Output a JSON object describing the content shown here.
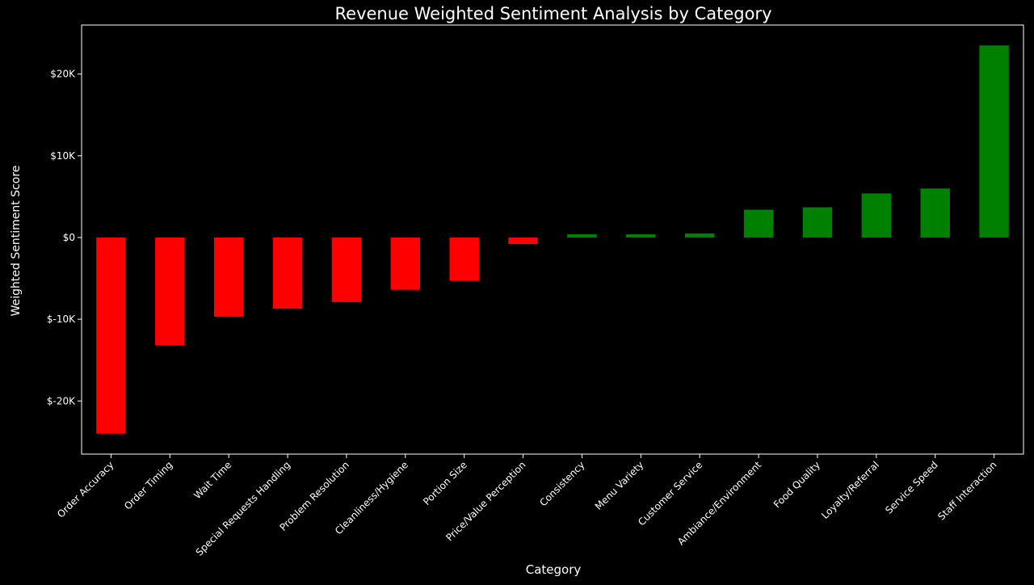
{
  "chart_data": {
    "type": "bar",
    "title": "Revenue Weighted Sentiment Analysis by Category",
    "xlabel": "Category",
    "ylabel": "Weighted Sentiment Score",
    "categories": [
      "Order Accuracy",
      "Order Timing",
      "Wait Time",
      "Special Requests Handling",
      "Problem Resolution",
      "Cleanliness/Hygiene",
      "Portion Size",
      "Price/Value Perception",
      "Consistency",
      "Menu Variety",
      "Customer Service",
      "Ambiance/Environment",
      "Food Quality",
      "Loyalty/Referral",
      "Service Speed",
      "Staff Interaction"
    ],
    "values": [
      -24000,
      -13200,
      -9700,
      -8700,
      -7900,
      -6400,
      -5300,
      -800,
      400,
      400,
      500,
      3400,
      3700,
      5400,
      6000,
      23500
    ],
    "ylim": [
      -26500,
      26000
    ],
    "yticks": [
      -20000,
      -10000,
      0,
      10000,
      20000
    ],
    "ytick_labels": [
      "$-20K",
      "$-10K",
      "$0",
      "$10K",
      "$20K"
    ],
    "positive_color": "#008000",
    "negative_color": "#ff0000",
    "background_color": "#000000",
    "grid": false,
    "legend": "none"
  }
}
